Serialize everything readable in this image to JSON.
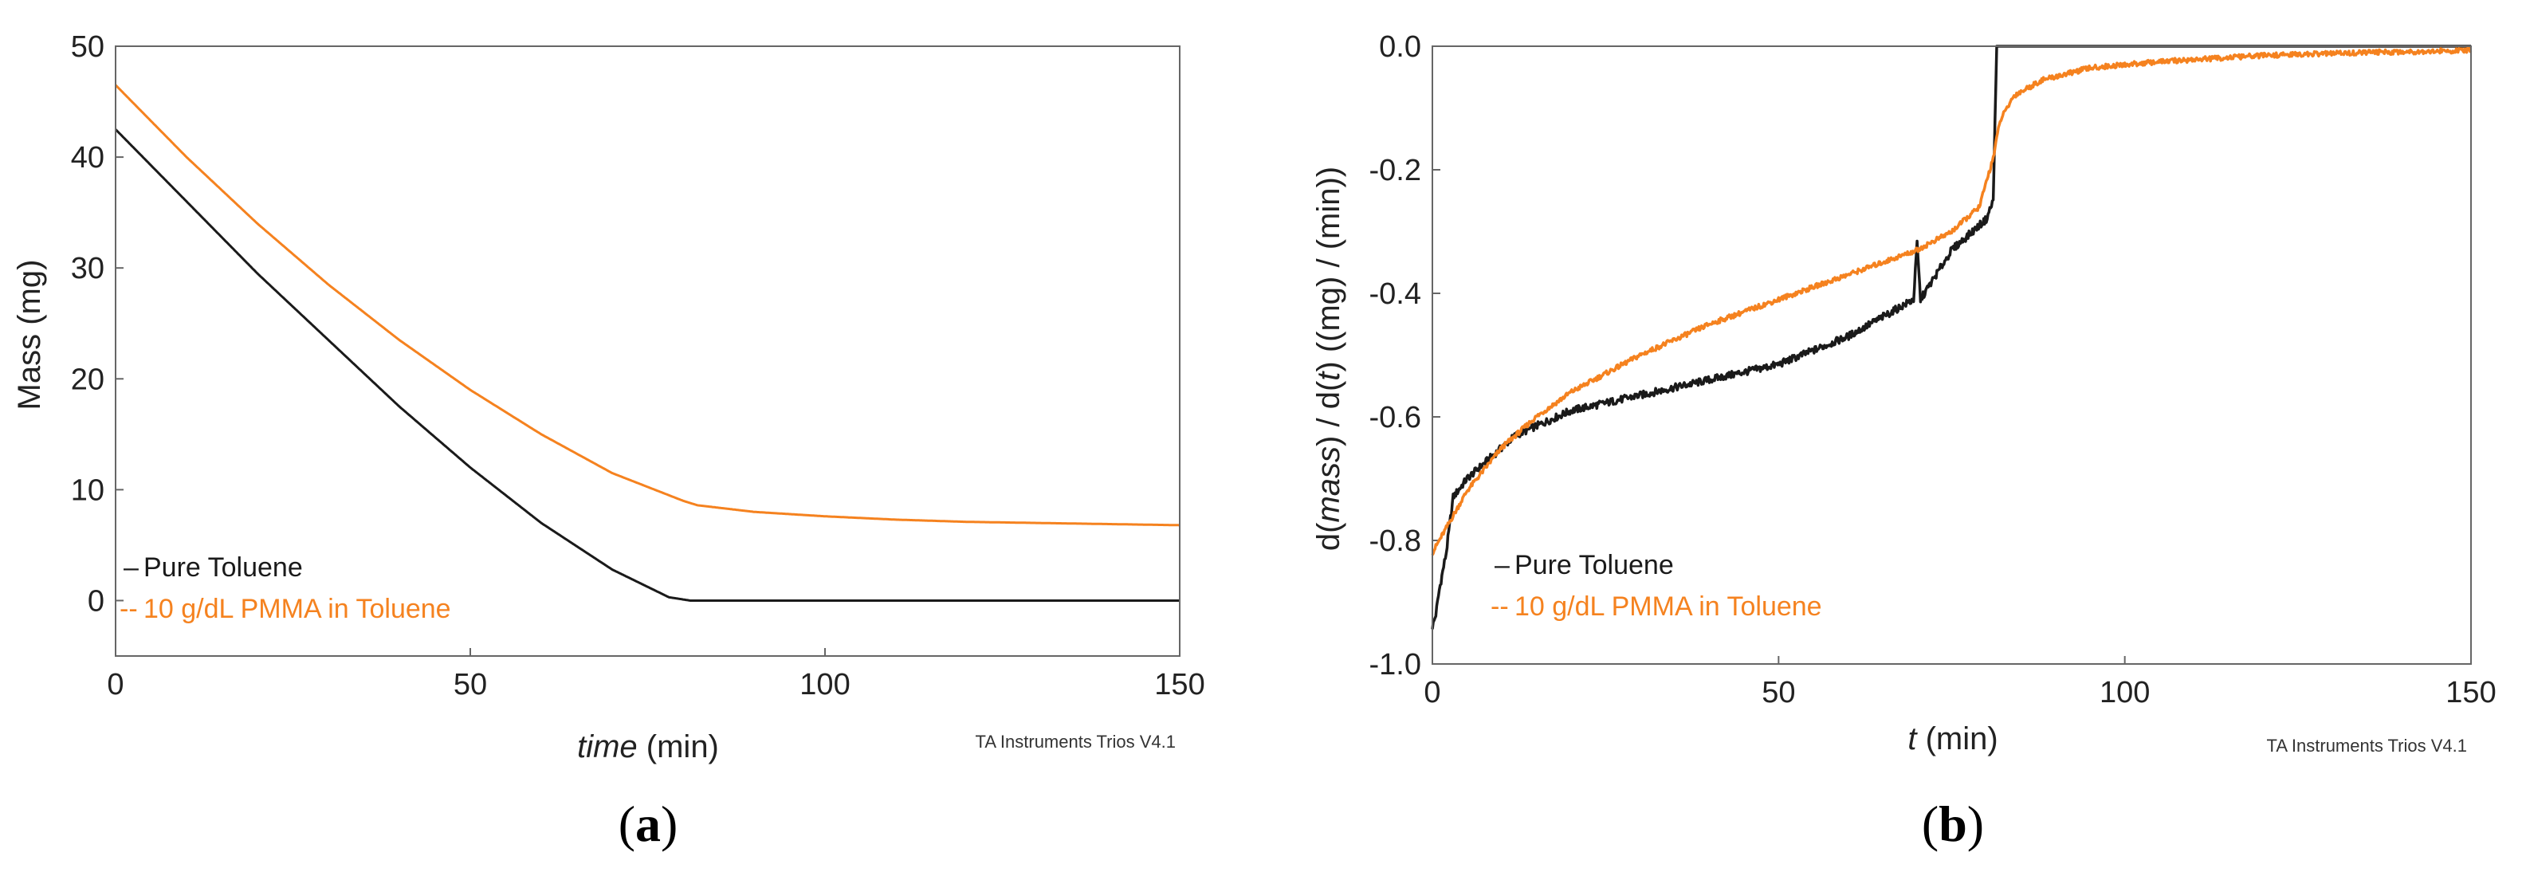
{
  "colors": {
    "pure": "#1a1a1a",
    "pmma": "#f5821f",
    "frame": "#666666"
  },
  "chart_data": [
    {
      "type": "line",
      "panel_label_parts": [
        "(",
        "a",
        ")"
      ],
      "ylabel": "Mass  (mg)",
      "xlabel_parts": [
        "time",
        " (min)"
      ],
      "xlim": [
        0,
        150
      ],
      "ylim": [
        -5,
        50
      ],
      "xticks": [
        "0",
        "50",
        "100",
        "150"
      ],
      "xtick_values": [
        0,
        50,
        100,
        150
      ],
      "yticks": [
        "0",
        "10",
        "20",
        "30",
        "40",
        "50"
      ],
      "ytick_values": [
        0,
        10,
        20,
        30,
        40,
        50
      ],
      "grid": false,
      "legend_position": "bottom-left",
      "credit": "TA Instruments Trios V4.1",
      "series": [
        {
          "name": "Pure Toluene",
          "color_key": "pure",
          "legend_marker": "–",
          "x": [
            0,
            10,
            20,
            30,
            40,
            50,
            60,
            70,
            78,
            81,
            82,
            90,
            100,
            110,
            120,
            130,
            140,
            150
          ],
          "y": [
            42.5,
            36.0,
            29.5,
            23.5,
            17.5,
            12.0,
            7.0,
            2.8,
            0.3,
            0.0,
            0.0,
            0.0,
            0.0,
            0.0,
            0.0,
            0.0,
            0.0,
            0.0
          ]
        },
        {
          "name": "10 g/dL PMMA in Toluene",
          "color_key": "pmma",
          "legend_marker": "--",
          "x": [
            0,
            10,
            20,
            30,
            40,
            50,
            60,
            70,
            80,
            82,
            90,
            100,
            110,
            120,
            130,
            140,
            150
          ],
          "y": [
            46.5,
            40.0,
            34.0,
            28.5,
            23.5,
            19.0,
            15.0,
            11.5,
            9.0,
            8.6,
            8.0,
            7.6,
            7.3,
            7.1,
            7.0,
            6.9,
            6.8
          ]
        }
      ]
    },
    {
      "type": "line",
      "panel_label_parts": [
        "(",
        "b",
        ")"
      ],
      "ylabel_parts": [
        "d(",
        "mass",
        ") / d(",
        "t",
        ")  ((mg) / (min))"
      ],
      "xlabel_parts": [
        "t",
        " (min)"
      ],
      "xlim": [
        0,
        150
      ],
      "ylim": [
        -1.0,
        0.0
      ],
      "xticks": [
        "0",
        "50",
        "100",
        "150"
      ],
      "xtick_values": [
        0,
        50,
        100,
        150
      ],
      "yticks": [
        "-1.0",
        "-0.8",
        "-0.6",
        "-0.4",
        "-0.2",
        "0.0"
      ],
      "ytick_values": [
        -1.0,
        -0.8,
        -0.6,
        -0.4,
        -0.2,
        0.0
      ],
      "grid": false,
      "legend_position": "bottom-left",
      "credit": "TA Instruments Trios V4.1",
      "series": [
        {
          "name": "Pure Toluene",
          "color_key": "pure",
          "legend_marker": "–",
          "x": [
            0,
            0.5,
            1,
            2,
            3,
            5,
            8,
            12,
            16,
            20,
            30,
            40,
            50,
            60,
            69.5,
            70,
            70.5,
            75,
            78,
            80,
            81,
            81.5,
            82,
            90,
            100,
            120,
            150
          ],
          "y": [
            -0.94,
            -0.92,
            -0.88,
            -0.82,
            -0.73,
            -0.7,
            -0.67,
            -0.63,
            -0.61,
            -0.59,
            -0.565,
            -0.54,
            -0.515,
            -0.47,
            -0.41,
            -0.32,
            -0.41,
            -0.33,
            -0.3,
            -0.28,
            -0.25,
            0.0,
            0.0,
            0.0,
            0.0,
            0.0,
            0.0
          ]
        },
        {
          "name": "10 g/dL PMMA in Toluene",
          "color_key": "pmma",
          "legend_marker": "--",
          "x": [
            0,
            2,
            5,
            10,
            15,
            20,
            30,
            40,
            50,
            60,
            70,
            75,
            79,
            81,
            82,
            84,
            88,
            95,
            105,
            120,
            135,
            150
          ],
          "y": [
            -0.82,
            -0.78,
            -0.72,
            -0.65,
            -0.6,
            -0.56,
            -0.5,
            -0.45,
            -0.41,
            -0.37,
            -0.33,
            -0.3,
            -0.26,
            -0.18,
            -0.12,
            -0.08,
            -0.055,
            -0.035,
            -0.025,
            -0.015,
            -0.01,
            -0.007
          ]
        }
      ]
    }
  ]
}
